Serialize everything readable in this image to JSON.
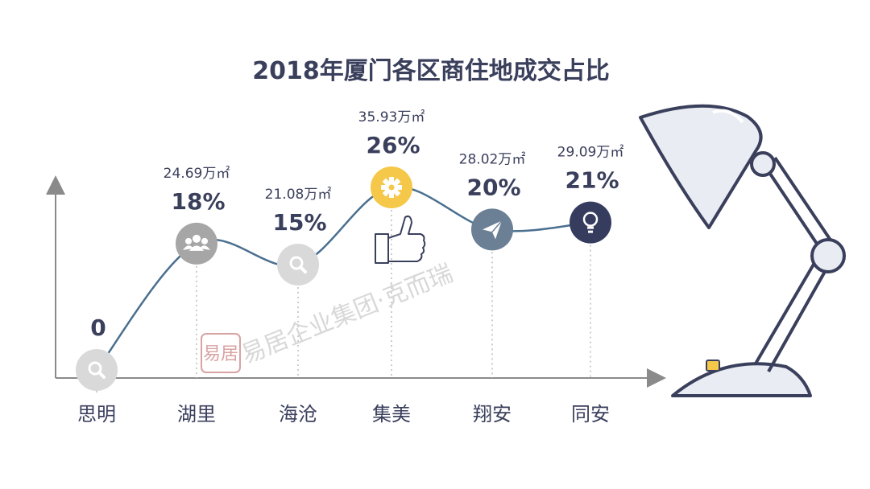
{
  "chart_data": {
    "type": "line",
    "title": "2018年厦门各区商住地成交占比",
    "categories": [
      "思明",
      "湖里",
      "海沧",
      "集美",
      "翔安",
      "同安"
    ],
    "values": [
      0,
      18,
      15,
      26,
      20,
      21
    ],
    "areas": [
      "",
      "24.69万㎡",
      "21.08万㎡",
      "35.93万㎡",
      "28.02万㎡",
      "29.09万㎡"
    ],
    "percent_labels": [
      "0",
      "18%",
      "15%",
      "26%",
      "20%",
      "21%"
    ],
    "ylim": [
      0,
      30
    ],
    "grid": false,
    "legend": "none"
  },
  "icons": [
    "search-icon",
    "people-icon",
    "search-icon",
    "gear-icon",
    "paper-plane-icon",
    "lightbulb-icon"
  ],
  "colors": {
    "text": "#3a3f5c",
    "line": "#4a6f8f",
    "marker_gray": "#a6a6a6",
    "marker_light": "#d9d9d9",
    "marker_yellow": "#f5c84a",
    "marker_slate": "#6b7f95",
    "marker_navy": "#353c5e"
  },
  "watermark": {
    "seal": "易居",
    "text": "易居企业集团·克而瑞"
  }
}
